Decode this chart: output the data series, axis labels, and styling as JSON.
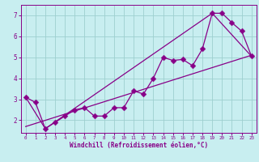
{
  "xlabel": "Windchill (Refroidissement éolien,°C)",
  "xlim": [
    -0.5,
    23.5
  ],
  "ylim": [
    1.4,
    7.5
  ],
  "yticks": [
    2,
    3,
    4,
    5,
    6,
    7
  ],
  "xticks": [
    0,
    1,
    2,
    3,
    4,
    5,
    6,
    7,
    8,
    9,
    10,
    11,
    12,
    13,
    14,
    15,
    16,
    17,
    18,
    19,
    20,
    21,
    22,
    23
  ],
  "background_color": "#c8eef0",
  "grid_color": "#9ecfcf",
  "line_color": "#880088",
  "line1_x": [
    0,
    1,
    2,
    3,
    4,
    5,
    6,
    7,
    8,
    9,
    10,
    11,
    12,
    13,
    14,
    15,
    16,
    17,
    18,
    19,
    20,
    21,
    22,
    23
  ],
  "line1_y": [
    3.1,
    2.85,
    1.6,
    1.9,
    2.2,
    2.5,
    2.6,
    2.2,
    2.2,
    2.6,
    2.6,
    3.4,
    3.25,
    4.0,
    5.0,
    4.85,
    4.9,
    4.6,
    5.4,
    7.1,
    7.1,
    6.65,
    6.25,
    5.05
  ],
  "line2_x": [
    0,
    2,
    19,
    23
  ],
  "line2_y": [
    3.1,
    1.6,
    7.1,
    5.05
  ],
  "line3_x": [
    0,
    23
  ],
  "line3_y": [
    1.7,
    5.1
  ],
  "marker_size": 3.5
}
